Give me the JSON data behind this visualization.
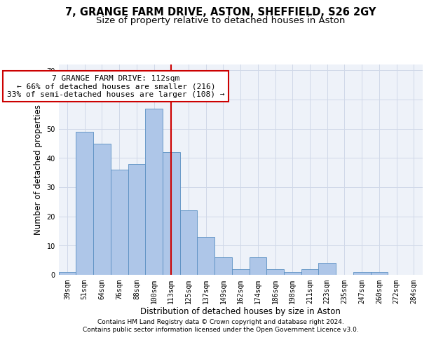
{
  "title": "7, GRANGE FARM DRIVE, ASTON, SHEFFIELD, S26 2GY",
  "subtitle": "Size of property relative to detached houses in Aston",
  "xlabel": "Distribution of detached houses by size in Aston",
  "ylabel": "Number of detached properties",
  "categories": [
    "39sqm",
    "51sqm",
    "64sqm",
    "76sqm",
    "88sqm",
    "100sqm",
    "113sqm",
    "125sqm",
    "137sqm",
    "149sqm",
    "162sqm",
    "174sqm",
    "186sqm",
    "198sqm",
    "211sqm",
    "223sqm",
    "235sqm",
    "247sqm",
    "260sqm",
    "272sqm",
    "284sqm"
  ],
  "values": [
    1,
    49,
    45,
    36,
    38,
    57,
    42,
    22,
    13,
    6,
    2,
    6,
    2,
    1,
    2,
    4,
    0,
    1,
    1,
    0,
    0
  ],
  "bar_color": "#aec6e8",
  "bar_edge_color": "#5a8fc2",
  "vline_x_index": 6,
  "vline_color": "#cc0000",
  "annotation_text": "7 GRANGE FARM DRIVE: 112sqm\n← 66% of detached houses are smaller (216)\n33% of semi-detached houses are larger (108) →",
  "annotation_box_color": "#ffffff",
  "annotation_box_edge_color": "#cc0000",
  "ylim": [
    0,
    72
  ],
  "yticks": [
    0,
    10,
    20,
    30,
    40,
    50,
    60,
    70
  ],
  "grid_color": "#d0d8e8",
  "background_color": "#eef2f9",
  "footer_line1": "Contains HM Land Registry data © Crown copyright and database right 2024.",
  "footer_line2": "Contains public sector information licensed under the Open Government Licence v3.0.",
  "title_fontsize": 10.5,
  "subtitle_fontsize": 9.5,
  "axis_label_fontsize": 8.5,
  "tick_fontsize": 7,
  "annotation_fontsize": 8,
  "footer_fontsize": 6.5
}
